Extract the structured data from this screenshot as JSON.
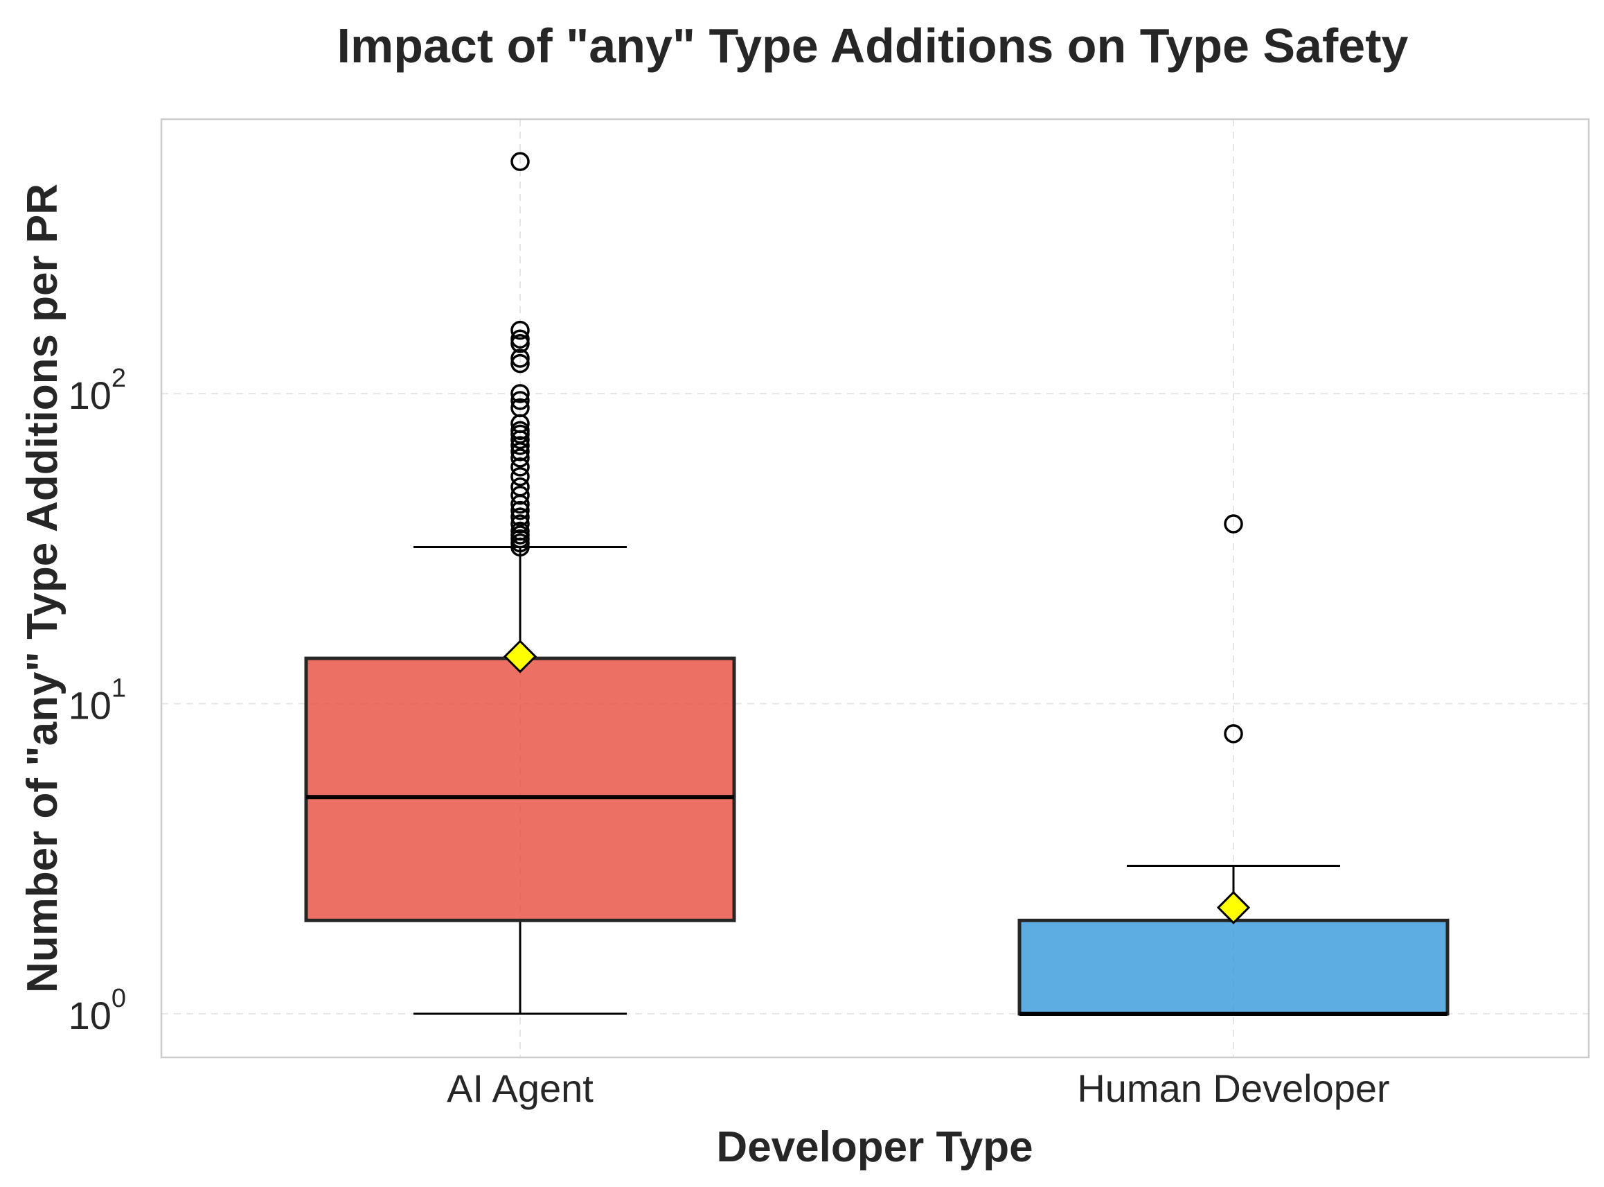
{
  "chart_data": {
    "type": "box",
    "title": "Impact of \"any\" Type Additions on Type Safety",
    "xlabel": "Developer Type",
    "ylabel": "Number of \"any\" Type Additions per PR",
    "yscale": "log",
    "ylim": [
      0.75,
      700
    ],
    "yticks": [
      {
        "value": 1,
        "base": "10",
        "exp": "0"
      },
      {
        "value": 10,
        "base": "10",
        "exp": "1"
      },
      {
        "value": 100,
        "base": "10",
        "exp": "2"
      }
    ],
    "grid": true,
    "categories": [
      "AI Agent",
      "Human Developer"
    ],
    "boxes": [
      {
        "category": "AI Agent",
        "color": "#e74c3c",
        "whisker_low": 1,
        "q1": 2,
        "median": 5,
        "q3": 14,
        "whisker_high": 32,
        "mean": 14.2,
        "outliers": [
          560,
          160,
          150,
          145,
          130,
          125,
          100,
          95,
          90,
          80,
          76,
          74,
          71,
          68,
          65,
          62,
          58,
          54,
          50,
          47,
          44,
          42,
          40,
          38,
          36,
          35,
          34,
          33,
          32
        ]
      },
      {
        "category": "Human Developer",
        "color": "#3498db",
        "whisker_low": 1,
        "q1": 1,
        "median": 1,
        "q3": 2,
        "whisker_high": 3,
        "mean": 2.2,
        "outliers": [
          8,
          38
        ]
      }
    ],
    "mean_marker_color": "#ffff00"
  }
}
